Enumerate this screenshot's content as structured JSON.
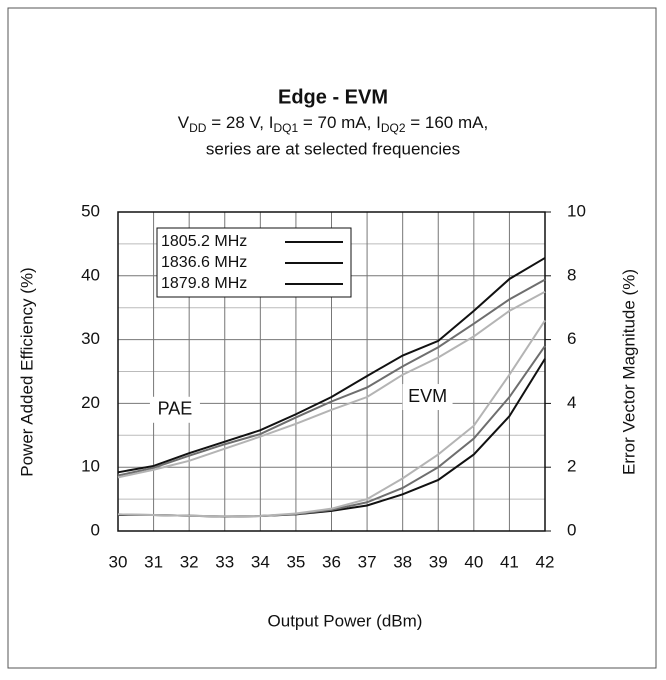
{
  "chart_data": {
    "type": "line",
    "title": "Edge - EVM",
    "subtitle": [
      [
        "V",
        "DD",
        " = 28 V,  I",
        "DQ1",
        " = 70 mA, I",
        "DQ2",
        " = 160 mA,"
      ],
      "series are at selected frequencies"
    ],
    "xlabel": "Output Power (dBm)",
    "ylabel": "Power Added Efficiency (%)",
    "y2label": "Error Vector Magnitude (%)",
    "annotations": [
      "PAE",
      "EVM"
    ],
    "x": [
      30,
      31,
      32,
      33,
      34,
      35,
      36,
      37,
      38,
      39,
      40,
      41,
      42
    ],
    "xlim": [
      30,
      42
    ],
    "xticks": [
      30,
      31,
      32,
      33,
      34,
      35,
      36,
      37,
      38,
      39,
      40,
      41,
      42
    ],
    "ylim": [
      0,
      50
    ],
    "yticks": [
      0,
      10,
      20,
      30,
      40,
      50
    ],
    "yminor_grid": [
      5,
      15,
      25,
      35,
      45
    ],
    "y2lim": [
      0,
      10
    ],
    "y2ticks": [
      0,
      2,
      4,
      6,
      8,
      10
    ],
    "grid": true,
    "legend": "upper left",
    "series": [
      {
        "name": "1805.2 MHz",
        "color": "#111111",
        "values": [
          9.2,
          10.2,
          12.2,
          14,
          15.8,
          18.3,
          21,
          24.3,
          27.5,
          29.8,
          34.5,
          39.5,
          42.8
        ]
      },
      {
        "name": "1836.6 MHz",
        "color": "#6e6e6e",
        "values": [
          8.7,
          9.9,
          11.8,
          13.6,
          15.2,
          17.8,
          20.3,
          22.5,
          25.8,
          28.8,
          32.5,
          36.3,
          39.4
        ]
      },
      {
        "name": "1879.8 MHz",
        "color": "#b4b4b4",
        "values": [
          8.4,
          9.6,
          11,
          12.9,
          14.8,
          16.8,
          19,
          21,
          24.5,
          27.2,
          30.5,
          34.5,
          37.5
        ]
      }
    ],
    "y2_series": [
      {
        "color": "#111111",
        "axis": "y2",
        "values": [
          0.5,
          0.5,
          0.48,
          0.45,
          0.47,
          0.52,
          0.63,
          0.8,
          1.15,
          1.6,
          2.4,
          3.6,
          5.4
        ]
      },
      {
        "color": "#6e6e6e",
        "axis": "y2",
        "values": [
          0.52,
          0.5,
          0.48,
          0.46,
          0.47,
          0.53,
          0.66,
          0.9,
          1.35,
          2.0,
          2.9,
          4.2,
          5.8
        ]
      },
      {
        "color": "#b4b4b4",
        "axis": "y2",
        "values": [
          0.52,
          0.5,
          0.48,
          0.46,
          0.47,
          0.55,
          0.7,
          1.0,
          1.65,
          2.4,
          3.3,
          4.9,
          6.6
        ]
      }
    ]
  }
}
